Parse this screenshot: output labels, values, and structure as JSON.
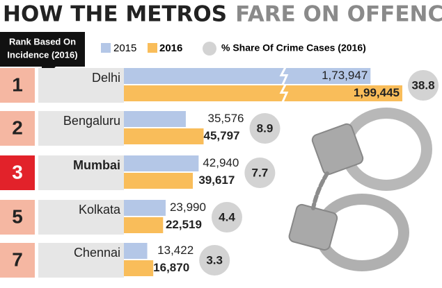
{
  "chart_data": {
    "type": "bar",
    "title_parts": [
      "HOW THE METROS",
      "FARE ON OFFENCES"
    ],
    "rank_header": [
      "Rank Based On",
      "Incidence (2016)"
    ],
    "share_label": "% Share Of Crime Cases (2016)",
    "categories": [
      "Delhi",
      "Bengaluru",
      "Mumbai",
      "Kolkata",
      "Chennai"
    ],
    "ranks": [
      1,
      2,
      3,
      5,
      7
    ],
    "highlight_index": 2,
    "series": [
      {
        "name": "2015",
        "color": "#b4c7e7",
        "values": [
          173947,
          35576,
          42940,
          23990,
          13422
        ],
        "value_labels": [
          "1,73,947",
          "35,576",
          "42,940",
          "23,990",
          "13,422"
        ]
      },
      {
        "name": "2016",
        "color": "#f9bd5a",
        "values": [
          199445,
          45797,
          39617,
          22519,
          16870
        ],
        "value_labels": [
          "1,99,445",
          "45,797",
          "39,617",
          "22,519",
          "16,870"
        ]
      }
    ],
    "shares": [
      38.8,
      8.9,
      7.7,
      4.4,
      3.3
    ],
    "share_color": "#d3d3d3"
  }
}
